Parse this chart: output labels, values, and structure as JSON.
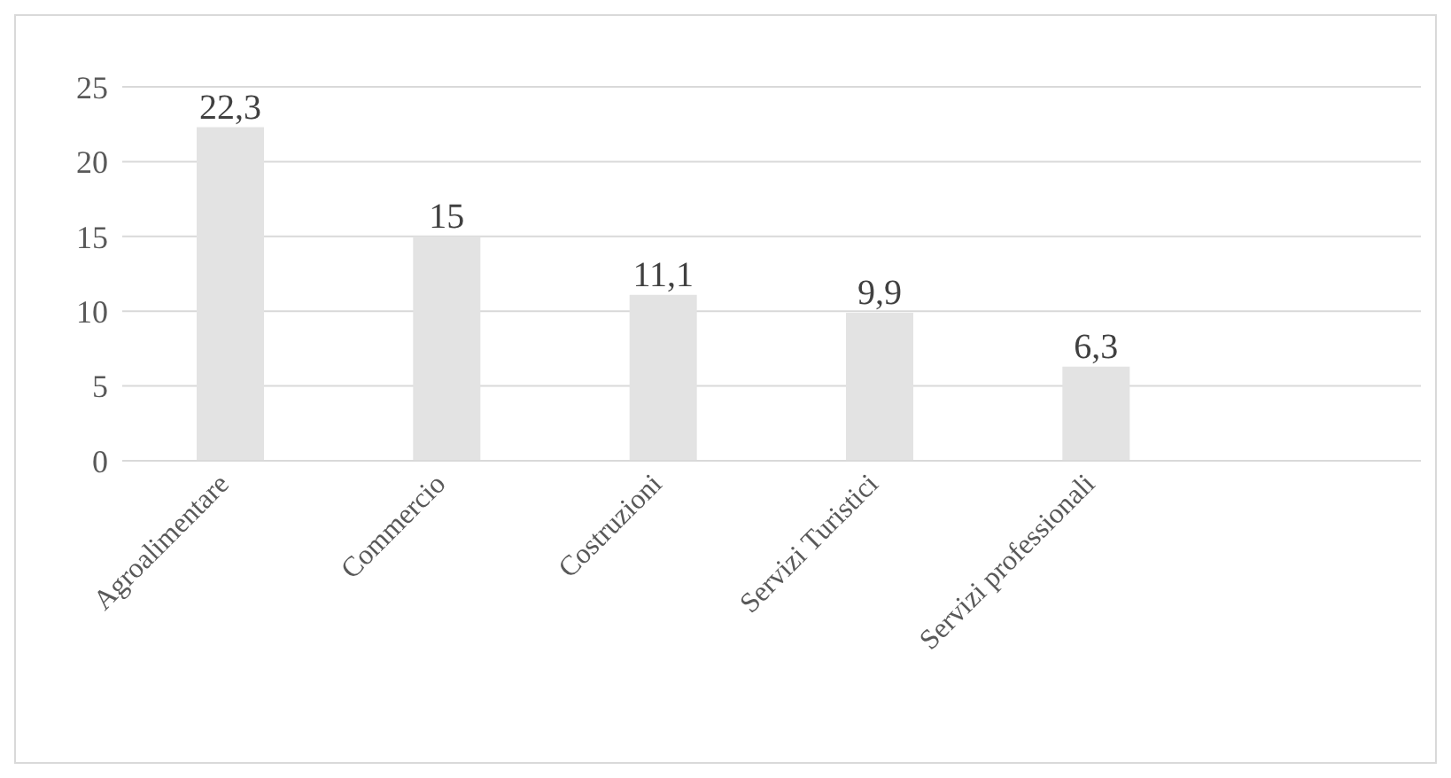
{
  "chart_data": {
    "type": "bar",
    "categories": [
      "Agroalimentare",
      "Commercio",
      "Costruzioni",
      "Servizi Turistici",
      "Servizi professionali",
      null
    ],
    "values": [
      22.3,
      15,
      11.1,
      9.9,
      6.3,
      null
    ],
    "color": "#e3e3e3",
    "value_labels": [
      "22,3",
      "15",
      "11,1",
      "9,9",
      "6,3",
      null
    ],
    "ylim": [
      0,
      25
    ],
    "yticks": [
      0,
      5,
      10,
      15,
      20,
      25
    ],
    "grid": "y",
    "legend": false
  }
}
